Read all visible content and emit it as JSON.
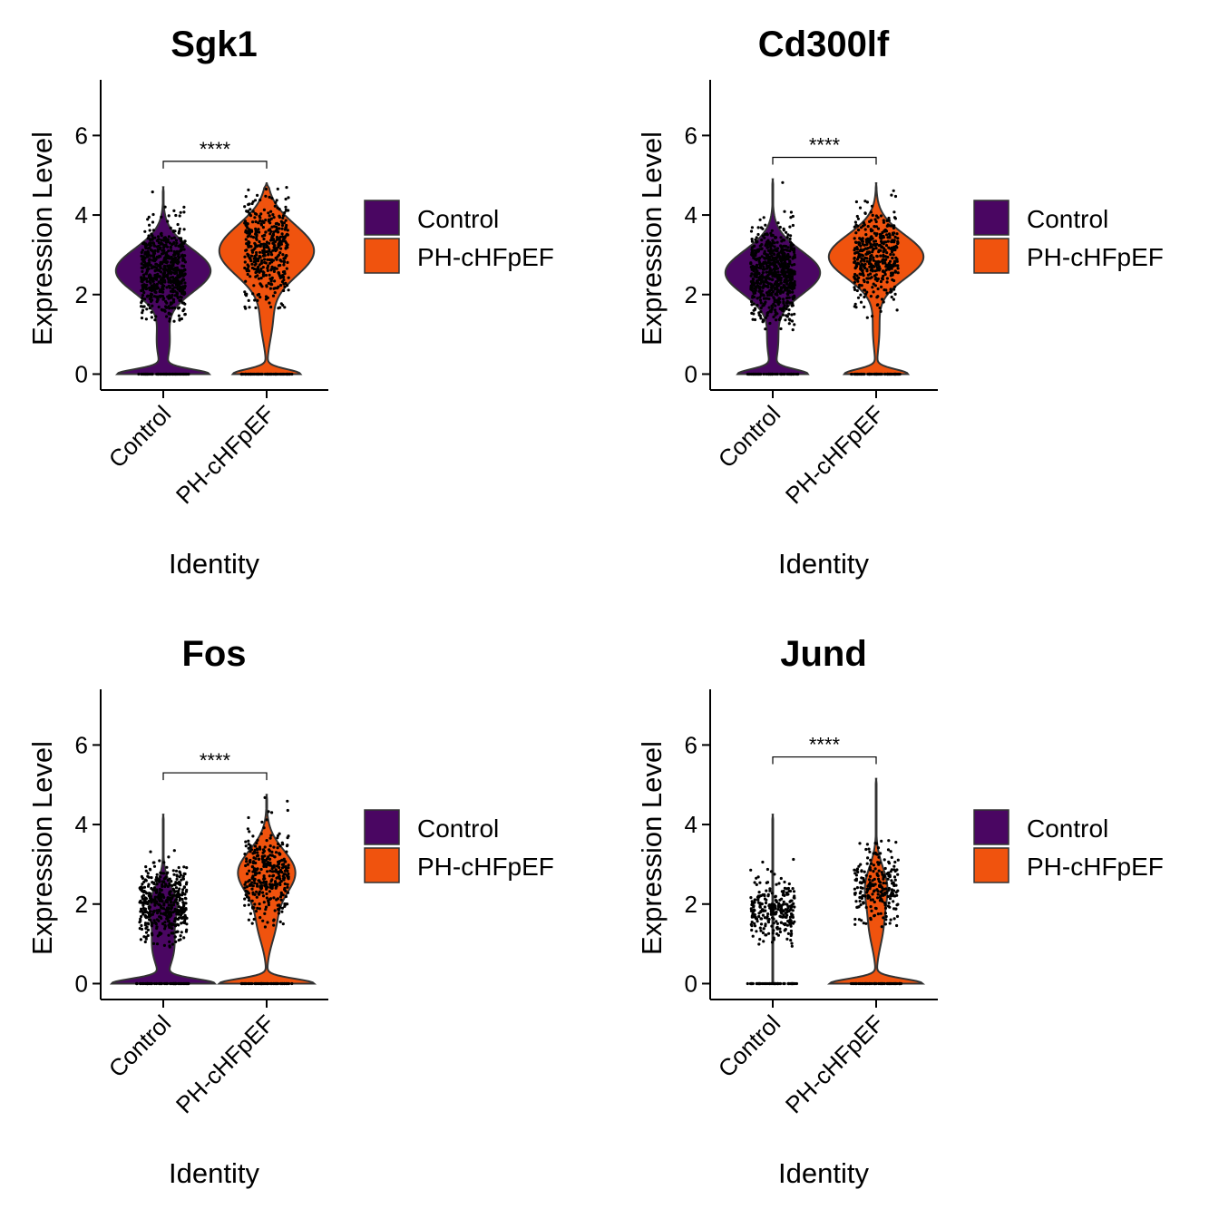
{
  "colors": {
    "Control": "#4a0662",
    "PH-cHFpEF": "#f0530e"
  },
  "chart_data": [
    {
      "type": "violin",
      "title": "Sgk1",
      "xlabel": "Identity",
      "ylabel": "Expression Level",
      "ylim": [
        -0.4,
        7.4
      ],
      "yticks": [
        0,
        2,
        4,
        6
      ],
      "categories": [
        "Control",
        "PH-cHFpEF"
      ],
      "legend": [
        "Control",
        "PH-cHFpEF"
      ],
      "significance": "****",
      "groups": [
        {
          "name": "Control",
          "max": 4.7,
          "zero_w": 0.42,
          "mode": 2.6,
          "mode_sd": 0.55,
          "mode_w": 0.45,
          "neck": 0.8,
          "neck_w": 0.06,
          "points": 650,
          "jitter": 0.42,
          "pt_min": 1.3,
          "pt_max": 4.6
        },
        {
          "name": "PH-cHFpEF",
          "max": 4.8,
          "zero_w": 0.32,
          "mode": 3.1,
          "mode_sd": 0.65,
          "mode_w": 0.45,
          "neck": 1.3,
          "neck_w": 0.05,
          "points": 420,
          "jitter": 0.42,
          "pt_min": 1.6,
          "pt_max": 4.7
        }
      ]
    },
    {
      "type": "violin",
      "title": "Cd300lf",
      "xlabel": "Identity",
      "ylabel": "Expression Level",
      "ylim": [
        -0.4,
        7.4
      ],
      "yticks": [
        0,
        2,
        4,
        6
      ],
      "categories": [
        "Control",
        "PH-cHFpEF"
      ],
      "legend": [
        "Control",
        "PH-cHFpEF"
      ],
      "significance": "****",
      "groups": [
        {
          "name": "Control",
          "max": 4.9,
          "zero_w": 0.32,
          "mode": 2.55,
          "mode_sd": 0.55,
          "mode_w": 0.45,
          "neck": 0.8,
          "neck_w": 0.05,
          "points": 700,
          "jitter": 0.42,
          "pt_min": 1.0,
          "pt_max": 4.9
        },
        {
          "name": "PH-cHFpEF",
          "max": 4.8,
          "zero_w": 0.3,
          "mode": 2.95,
          "mode_sd": 0.55,
          "mode_w": 0.45,
          "neck": 1.1,
          "neck_w": 0.03,
          "points": 430,
          "jitter": 0.42,
          "pt_min": 1.4,
          "pt_max": 4.7
        }
      ]
    },
    {
      "type": "violin",
      "title": "Fos",
      "xlabel": "Identity",
      "ylabel": "Expression Level",
      "ylim": [
        -0.4,
        7.4
      ],
      "yticks": [
        0,
        2,
        4,
        6
      ],
      "categories": [
        "Control",
        "PH-cHFpEF"
      ],
      "legend": [
        "Control",
        "PH-cHFpEF"
      ],
      "significance": "****",
      "groups": [
        {
          "name": "Control",
          "max": 4.25,
          "zero_w": 0.47,
          "mode": 2.0,
          "mode_sd": 0.45,
          "mode_w": 0.12,
          "neck": 0.9,
          "neck_w": 0.1,
          "points": 460,
          "jitter": 0.45,
          "pt_min": 0.9,
          "pt_max": 3.8
        },
        {
          "name": "PH-cHFpEF",
          "max": 4.75,
          "zero_w": 0.45,
          "mode": 2.8,
          "mode_sd": 0.55,
          "mode_w": 0.27,
          "neck": 1.5,
          "neck_w": 0.08,
          "points": 340,
          "jitter": 0.42,
          "pt_min": 1.3,
          "pt_max": 4.7
        }
      ]
    },
    {
      "type": "violin",
      "title": "Jund",
      "xlabel": "Identity",
      "ylabel": "Expression Level",
      "ylim": [
        -0.4,
        7.4
      ],
      "yticks": [
        0,
        2,
        4,
        6
      ],
      "categories": [
        "Control",
        "PH-cHFpEF"
      ],
      "legend": [
        "Control",
        "PH-cHFpEF"
      ],
      "significance": "****",
      "groups": [
        {
          "name": "Control",
          "max": 4.25,
          "zero_w": 0.0,
          "mode": 1.85,
          "mode_sd": 0.4,
          "mode_w": 0.0,
          "neck": 0.9,
          "neck_w": 0.0,
          "points": 260,
          "jitter": 0.42,
          "pt_min": 0.9,
          "pt_max": 4.2
        },
        {
          "name": "PH-cHFpEF",
          "max": 5.15,
          "zero_w": 0.44,
          "mode": 2.45,
          "mode_sd": 0.5,
          "mode_w": 0.1,
          "neck": 1.4,
          "neck_w": 0.06,
          "points": 240,
          "jitter": 0.42,
          "pt_min": 1.3,
          "pt_max": 5.1
        }
      ]
    }
  ]
}
